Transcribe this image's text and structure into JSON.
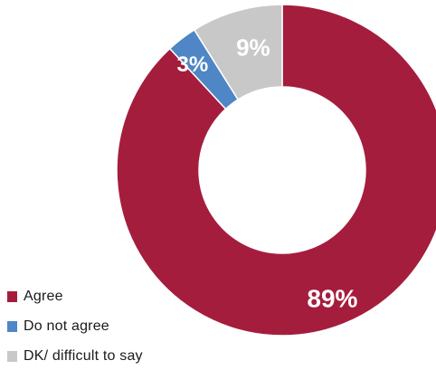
{
  "chart_data": {
    "type": "pie",
    "variant": "donut",
    "categories": [
      "Agree",
      "Do not agree",
      "DK/ difficult to say"
    ],
    "values": [
      89,
      3,
      9
    ],
    "data_labels": [
      "89%",
      "3%",
      "9%"
    ],
    "colors": [
      "#a51d3c",
      "#4f86c6",
      "#c8c8c8"
    ],
    "legend_position": "bottom-left",
    "start_angle_deg": 0,
    "direction": "clockwise"
  },
  "legend": {
    "items": [
      {
        "label": "Agree",
        "color": "#a51d3c"
      },
      {
        "label": "Do not agree",
        "color": "#4f86c6"
      },
      {
        "label": "DK/ difficult to say",
        "color": "#c8c8c8"
      }
    ]
  }
}
